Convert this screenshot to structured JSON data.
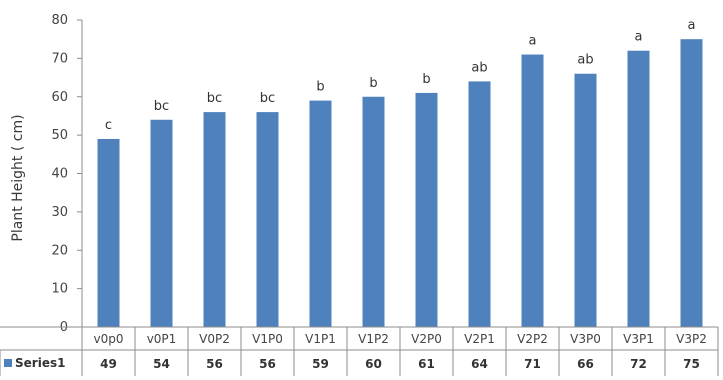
{
  "chart_data": {
    "type": "bar",
    "ylabel": "Plant Height ( cm)",
    "xlabel": "",
    "ylim": [
      0,
      80
    ],
    "yticks": [
      0,
      10,
      20,
      30,
      40,
      50,
      60,
      70,
      80
    ],
    "grid": false,
    "categories": [
      "v0p0",
      "v0P1",
      "V0P2",
      "V1P0",
      "V1P1",
      "V1P2",
      "V2P0",
      "V2P1",
      "V2P2",
      "V3P0",
      "V3P1",
      "V3P2"
    ],
    "series": [
      {
        "name": "Series1",
        "color": "#4f81bd",
        "values": [
          49,
          54,
          56,
          56,
          59,
          60,
          61,
          64,
          71,
          66,
          72,
          75
        ]
      }
    ],
    "significance_letters": [
      "c",
      "bc",
      "bc",
      "bc",
      "b",
      "b",
      "b",
      "ab",
      "a",
      "ab",
      "a",
      "a"
    ],
    "data_table": {
      "series_label": "Series1",
      "values": [
        "49",
        "54",
        "56",
        "56",
        "59",
        "60",
        "61",
        "64",
        "71",
        "66",
        "72",
        "75"
      ]
    }
  }
}
